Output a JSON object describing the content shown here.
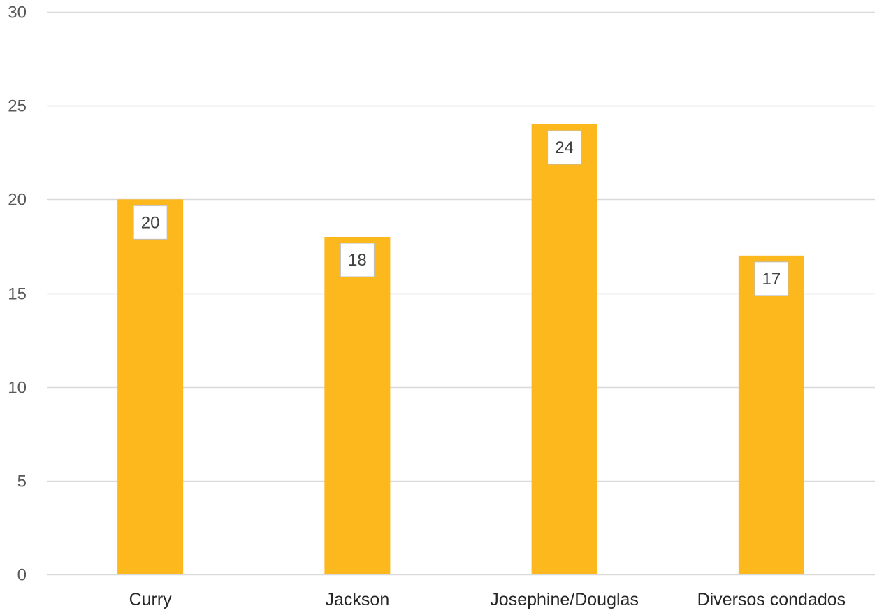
{
  "chart_data": {
    "type": "bar",
    "title": "",
    "xlabel": "",
    "ylabel": "",
    "categories": [
      "Curry",
      "Jackson",
      "Josephine/Douglas",
      "Diversos condados"
    ],
    "values": [
      20,
      18,
      24,
      17
    ],
    "ylim": [
      0,
      30
    ],
    "yticks": [
      0,
      5,
      10,
      15,
      20,
      25,
      30
    ],
    "grid": true,
    "legend": "none",
    "data_labels": true,
    "colors": {
      "bar": "#FDB81E",
      "grid": "#D9D9D9",
      "tick_text": "#595959",
      "category_text": "#262626",
      "label_text": "#404040",
      "label_box_border": "#BFBFBF"
    }
  }
}
